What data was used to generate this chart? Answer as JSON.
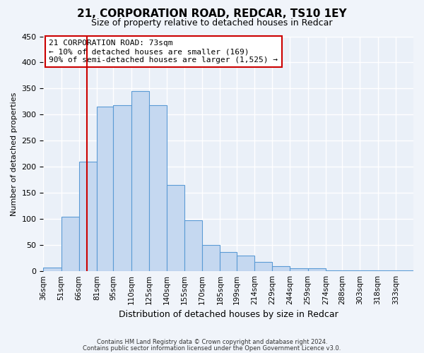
{
  "title": "21, CORPORATION ROAD, REDCAR, TS10 1EY",
  "subtitle": "Size of property relative to detached houses in Redcar",
  "xlabel": "Distribution of detached houses by size in Redcar",
  "ylabel": "Number of detached properties",
  "bar_labels": [
    "36sqm",
    "51sqm",
    "66sqm",
    "81sqm",
    "95sqm",
    "110sqm",
    "125sqm",
    "140sqm",
    "155sqm",
    "170sqm",
    "185sqm",
    "199sqm",
    "214sqm",
    "229sqm",
    "244sqm",
    "259sqm",
    "274sqm",
    "288sqm",
    "303sqm",
    "318sqm",
    "333sqm"
  ],
  "bar_values": [
    7,
    105,
    210,
    315,
    318,
    345,
    318,
    165,
    97,
    50,
    37,
    30,
    18,
    10,
    5,
    5,
    2,
    1,
    1,
    1,
    2
  ],
  "bar_color": "#c5d8f0",
  "bar_edge_color": "#5b9bd5",
  "ylim": [
    0,
    450
  ],
  "yticks": [
    0,
    50,
    100,
    150,
    200,
    250,
    300,
    350,
    400,
    450
  ],
  "property_line_x": 73,
  "property_line_color": "#cc0000",
  "annotation_title": "21 CORPORATION ROAD: 73sqm",
  "annotation_line1": "← 10% of detached houses are smaller (169)",
  "annotation_line2": "90% of semi-detached houses are larger (1,525) →",
  "annotation_box_color": "#cc0000",
  "footer_line1": "Contains HM Land Registry data © Crown copyright and database right 2024.",
  "footer_line2": "Contains public sector information licensed under the Open Government Licence v3.0.",
  "bg_color": "#f0f4fa",
  "plot_bg_color": "#eaf0f8",
  "grid_color": "#ffffff",
  "bin_edges": [
    36,
    51,
    66,
    81,
    95,
    110,
    125,
    140,
    155,
    170,
    185,
    199,
    214,
    229,
    244,
    259,
    274,
    288,
    303,
    318,
    333,
    348
  ]
}
